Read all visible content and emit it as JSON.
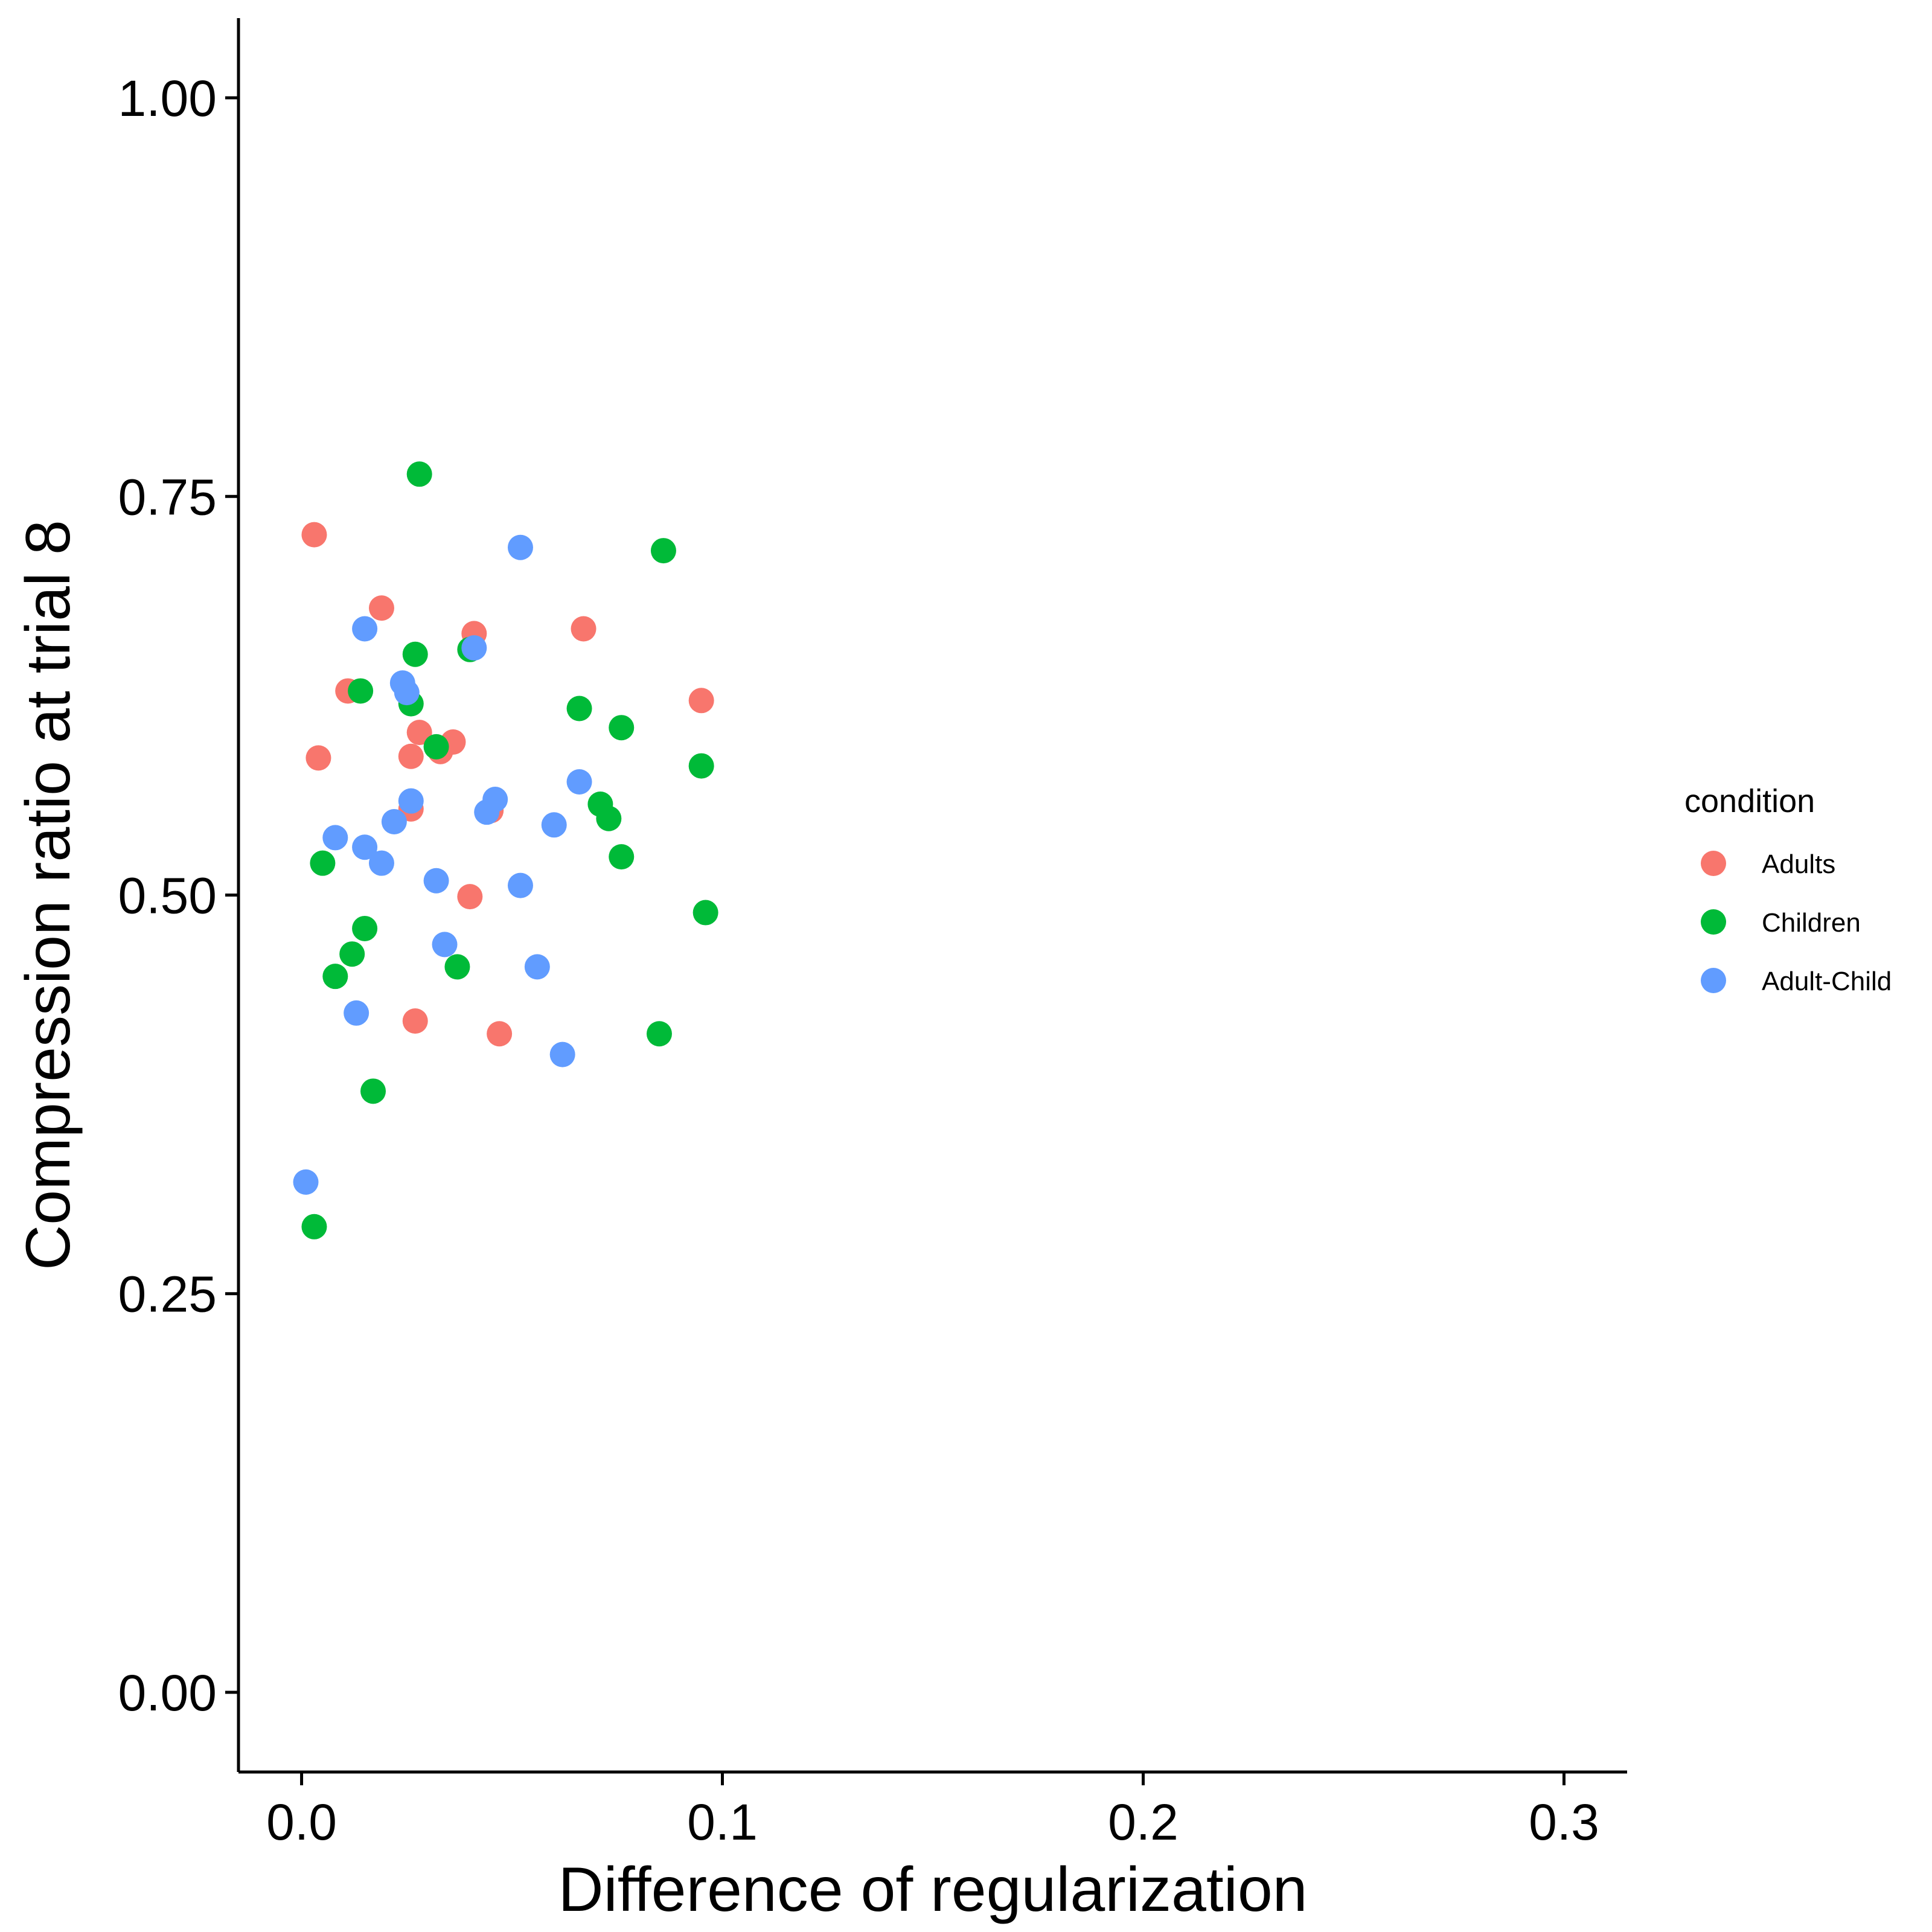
{
  "chart_data": {
    "type": "scatter",
    "title": "",
    "xlabel": "Difference of regularization",
    "ylabel": "Compression ratio at trial 8",
    "xlim": [
      -0.015,
      0.315
    ],
    "ylim": [
      -0.05,
      1.05
    ],
    "x_ticks": [
      0.0,
      0.1,
      0.2,
      0.3
    ],
    "x_tick_labels": [
      "0.0",
      "0.1",
      "0.2",
      "0.3"
    ],
    "y_ticks": [
      0.0,
      0.25,
      0.5,
      0.75,
      1.0
    ],
    "y_tick_labels": [
      "0.00",
      "0.25",
      "0.50",
      "0.75",
      "1.00"
    ],
    "grid": false,
    "legend": {
      "title": "condition",
      "placement": "right"
    },
    "series": [
      {
        "name": "Adults",
        "color": "#F8766D",
        "points": [
          [
            0.003,
            0.726
          ],
          [
            0.019,
            0.68
          ],
          [
            0.004,
            0.586
          ],
          [
            0.011,
            0.628
          ],
          [
            0.041,
            0.664
          ],
          [
            0.067,
            0.667
          ],
          [
            0.095,
            0.622
          ],
          [
            0.028,
            0.602
          ],
          [
            0.026,
            0.587
          ],
          [
            0.033,
            0.59
          ],
          [
            0.036,
            0.596
          ],
          [
            0.026,
            0.554
          ],
          [
            0.045,
            0.553
          ],
          [
            0.04,
            0.499
          ],
          [
            0.027,
            0.421
          ],
          [
            0.047,
            0.413
          ]
        ]
      },
      {
        "name": "Children",
        "color": "#00BA38",
        "points": [
          [
            0.028,
            0.764
          ],
          [
            0.086,
            0.716
          ],
          [
            0.027,
            0.651
          ],
          [
            0.04,
            0.654
          ],
          [
            0.014,
            0.628
          ],
          [
            0.026,
            0.62
          ],
          [
            0.066,
            0.617
          ],
          [
            0.076,
            0.605
          ],
          [
            0.032,
            0.593
          ],
          [
            0.095,
            0.581
          ],
          [
            0.071,
            0.557
          ],
          [
            0.073,
            0.548
          ],
          [
            0.076,
            0.524
          ],
          [
            0.005,
            0.52
          ],
          [
            0.096,
            0.489
          ],
          [
            0.015,
            0.479
          ],
          [
            0.012,
            0.463
          ],
          [
            0.037,
            0.455
          ],
          [
            0.008,
            0.449
          ],
          [
            0.085,
            0.413
          ],
          [
            0.017,
            0.377
          ],
          [
            0.003,
            0.292
          ]
        ]
      },
      {
        "name": "Adult-Child",
        "color": "#619CFF",
        "points": [
          [
            0.052,
            0.718
          ],
          [
            0.015,
            0.667
          ],
          [
            0.041,
            0.655
          ],
          [
            0.024,
            0.633
          ],
          [
            0.025,
            0.627
          ],
          [
            0.066,
            0.571
          ],
          [
            0.026,
            0.559
          ],
          [
            0.046,
            0.56
          ],
          [
            0.044,
            0.552
          ],
          [
            0.022,
            0.546
          ],
          [
            0.06,
            0.544
          ],
          [
            0.008,
            0.536
          ],
          [
            0.015,
            0.53
          ],
          [
            0.019,
            0.52
          ],
          [
            0.032,
            0.509
          ],
          [
            0.052,
            0.506
          ],
          [
            0.034,
            0.469
          ],
          [
            0.056,
            0.455
          ],
          [
            0.013,
            0.426
          ],
          [
            0.062,
            0.4
          ],
          [
            0.001,
            0.32
          ]
        ]
      }
    ]
  }
}
